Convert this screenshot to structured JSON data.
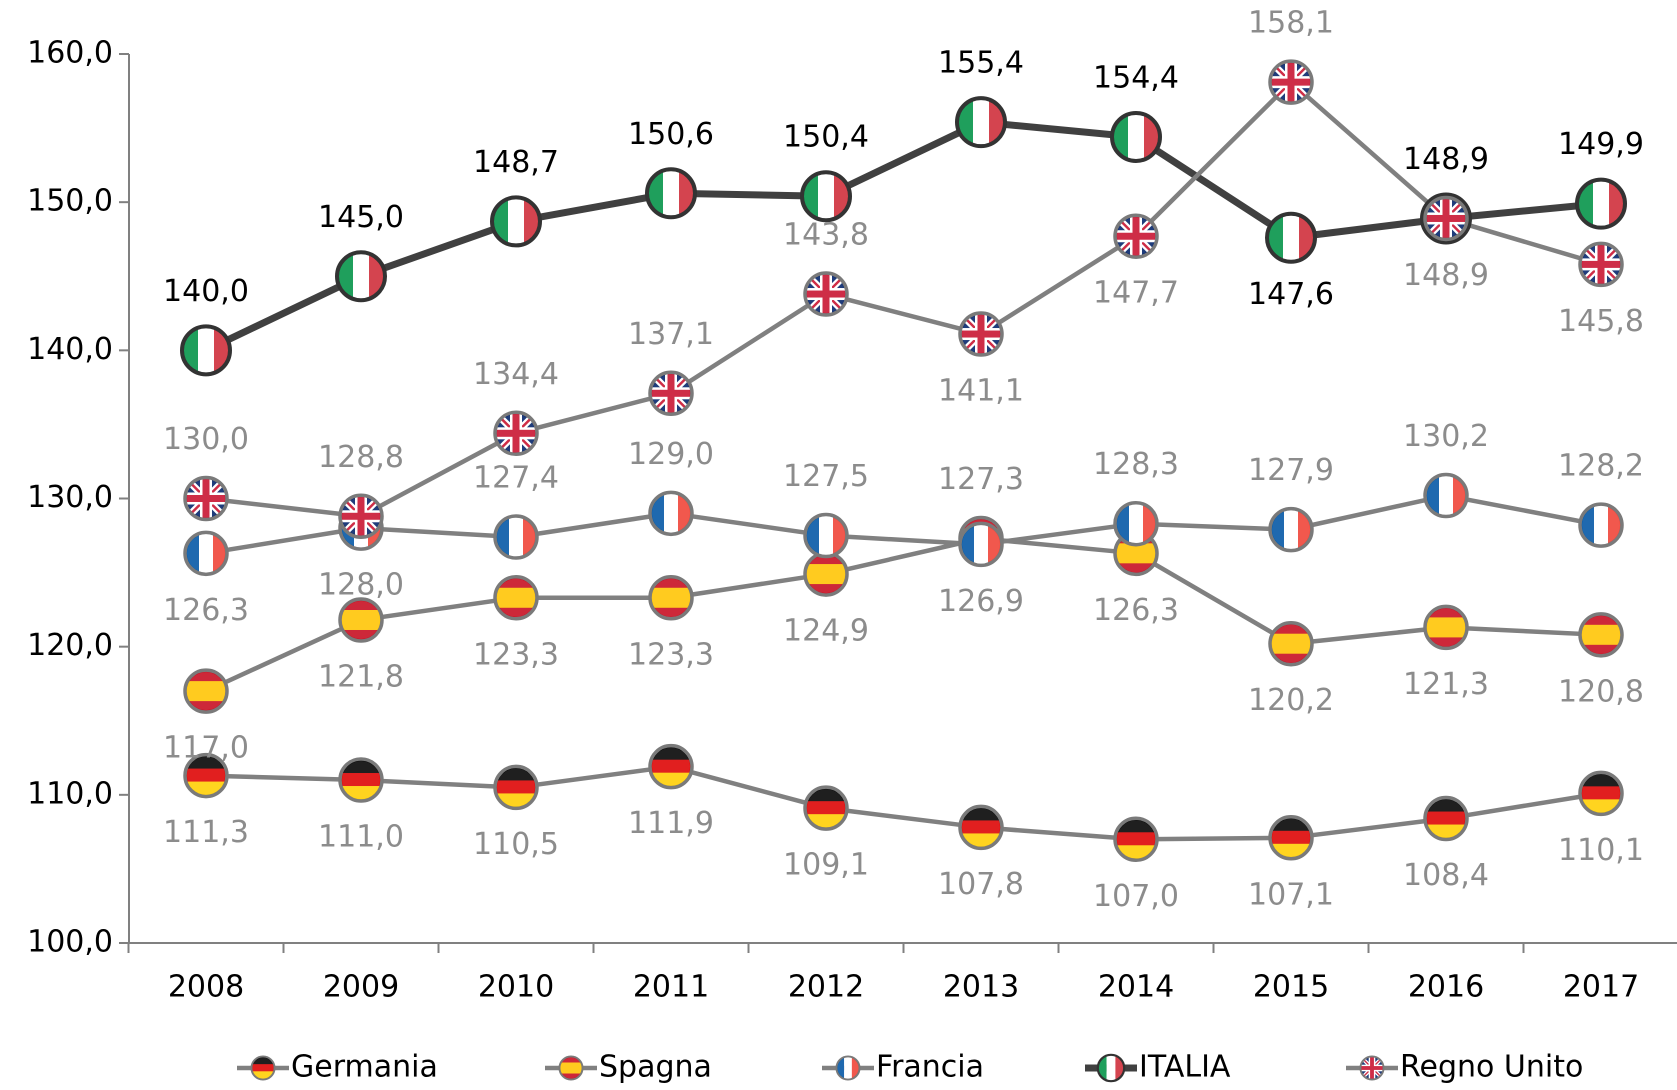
{
  "chart_data": {
    "type": "line",
    "categories": [
      "2008",
      "2009",
      "2010",
      "2011",
      "2012",
      "2013",
      "2014",
      "2015",
      "2016",
      "2017"
    ],
    "ylim": [
      100,
      160
    ],
    "yticks": [
      {
        "value": 100,
        "label": "100,0"
      },
      {
        "value": 110,
        "label": "110,0"
      },
      {
        "value": 120,
        "label": "120,0"
      },
      {
        "value": 130,
        "label": "130,0"
      },
      {
        "value": 140,
        "label": "140,0"
      },
      {
        "value": 150,
        "label": "150,0"
      },
      {
        "value": 160,
        "label": "160,0"
      }
    ],
    "legend": "bottom",
    "series": [
      {
        "name": "Germania",
        "color": "#808080",
        "values": [
          111.3,
          111.0,
          110.5,
          111.9,
          109.1,
          107.8,
          107.0,
          107.1,
          108.4,
          110.1
        ],
        "value_labels": [
          "111,3",
          "111,0",
          "110,5",
          "111,9",
          "109,1",
          "107,8",
          "107,0",
          "107,1",
          "108,4",
          "110,1"
        ]
      },
      {
        "name": "Spagna",
        "color": "#808080",
        "values": [
          117.0,
          121.8,
          123.3,
          123.3,
          124.9,
          127.3,
          126.3,
          120.2,
          121.3,
          120.8
        ],
        "value_labels": [
          "117,0",
          "121,8",
          "123,3",
          "123,3",
          "124,9",
          "127,3",
          "126,3",
          "120,2",
          "121,3",
          "120,8"
        ]
      },
      {
        "name": "Francia",
        "color": "#808080",
        "values": [
          126.3,
          128.0,
          127.4,
          129.0,
          127.5,
          126.9,
          128.3,
          127.9,
          130.2,
          128.2
        ],
        "value_labels": [
          "126,3",
          "128,0",
          "127,4",
          "129,0",
          "127,5",
          "126,9",
          "128,3",
          "127,9",
          "130,2",
          "128,2"
        ]
      },
      {
        "name": "ITALIA",
        "color": "#404040",
        "values": [
          140.0,
          145.0,
          148.7,
          150.6,
          150.4,
          155.4,
          154.4,
          147.6,
          148.9,
          149.9
        ],
        "value_labels": [
          "140,0",
          "145,0",
          "148,7",
          "150,6",
          "150,4",
          "155,4",
          "154,4",
          "147,6",
          "148,9",
          "149,9"
        ]
      },
      {
        "name": "Regno Unito",
        "color": "#808080",
        "values": [
          130.0,
          128.8,
          134.4,
          137.1,
          143.8,
          141.1,
          147.7,
          158.1,
          148.9,
          145.8
        ],
        "value_labels": [
          "130,0",
          "128,8",
          "134,4",
          "137,1",
          "143,8",
          "141,1",
          "147,7",
          "158,1",
          "148,9",
          "145,8"
        ]
      }
    ]
  }
}
